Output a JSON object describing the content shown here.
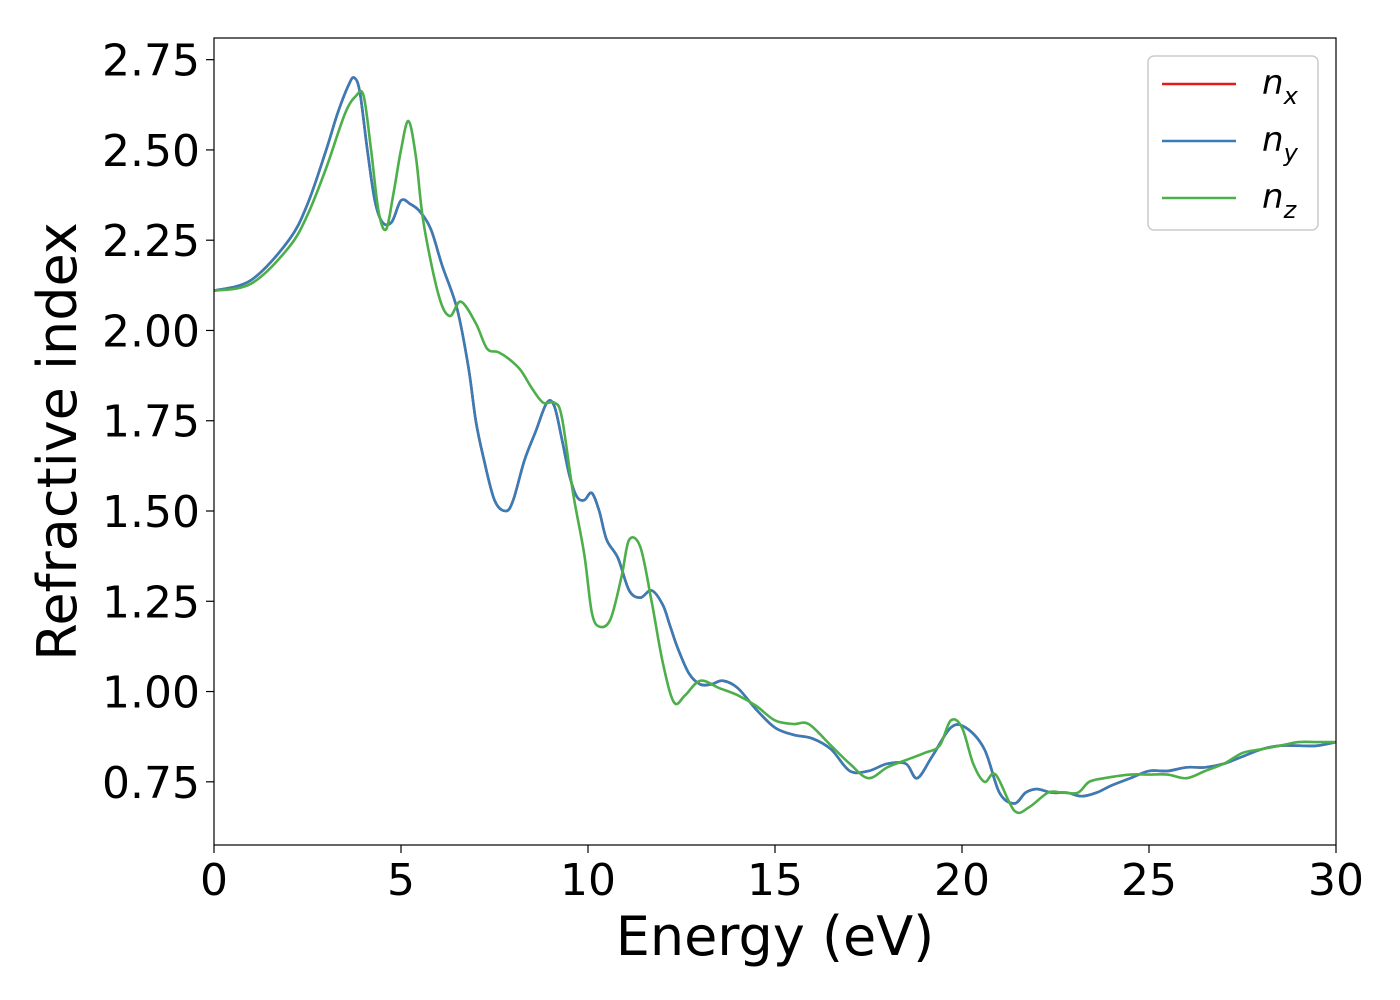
{
  "chart_data": {
    "type": "line",
    "title": "",
    "xlabel": "Energy (eV)",
    "ylabel": "Refractive index",
    "xlim": [
      0,
      30
    ],
    "ylim": [
      0.575,
      2.81
    ],
    "xticks": [
      0,
      5,
      10,
      15,
      20,
      25,
      30
    ],
    "xtick_labels": [
      "0",
      "5",
      "10",
      "15",
      "20",
      "25",
      "30"
    ],
    "yticks": [
      0.75,
      1.0,
      1.25,
      1.5,
      1.75,
      2.0,
      2.25,
      2.5,
      2.75
    ],
    "ytick_labels": [
      "0.75",
      "1.00",
      "1.25",
      "1.50",
      "1.75",
      "2.00",
      "2.25",
      "2.50",
      "2.75"
    ],
    "grid": false,
    "legend_position": "top-right",
    "series": [
      {
        "name": "n_x",
        "legend_base": "n",
        "legend_sub": "x",
        "color": "#e41a1c",
        "x": [
          0,
          1,
          2,
          2.5,
          3,
          3.3,
          3.6,
          3.75,
          3.9,
          4.1,
          4.3,
          4.5,
          4.75,
          5.0,
          5.25,
          5.5,
          5.8,
          6.1,
          6.5,
          6.8,
          7.0,
          7.2,
          7.5,
          7.8,
          8.0,
          8.3,
          8.6,
          8.9,
          9.1,
          9.3,
          9.5,
          9.7,
          9.9,
          10.1,
          10.3,
          10.5,
          10.8,
          11.1,
          11.4,
          11.7,
          12.0,
          12.2,
          12.4,
          12.7,
          13.0,
          13.3,
          13.6,
          14.0,
          14.5,
          15.0,
          15.5,
          16.0,
          16.5,
          17.0,
          17.5,
          18.0,
          18.5,
          18.8,
          19.2,
          19.7,
          20.1,
          20.6,
          21.0,
          21.4,
          21.7,
          22.0,
          22.4,
          22.8,
          23.2,
          23.6,
          24.0,
          24.5,
          25.0,
          25.5,
          26.0,
          26.5,
          27.0,
          27.5,
          28.0,
          28.5,
          29.0,
          29.5,
          30.0
        ],
        "y": [
          2.11,
          2.14,
          2.25,
          2.35,
          2.5,
          2.6,
          2.68,
          2.7,
          2.66,
          2.5,
          2.36,
          2.3,
          2.3,
          2.36,
          2.35,
          2.33,
          2.28,
          2.18,
          2.06,
          1.9,
          1.75,
          1.65,
          1.53,
          1.5,
          1.53,
          1.64,
          1.72,
          1.8,
          1.79,
          1.7,
          1.6,
          1.54,
          1.53,
          1.55,
          1.5,
          1.42,
          1.37,
          1.28,
          1.26,
          1.28,
          1.24,
          1.18,
          1.12,
          1.05,
          1.02,
          1.02,
          1.03,
          1.01,
          0.95,
          0.9,
          0.88,
          0.87,
          0.84,
          0.78,
          0.78,
          0.8,
          0.8,
          0.76,
          0.82,
          0.9,
          0.9,
          0.84,
          0.72,
          0.69,
          0.72,
          0.73,
          0.72,
          0.72,
          0.71,
          0.72,
          0.74,
          0.76,
          0.78,
          0.78,
          0.79,
          0.79,
          0.8,
          0.82,
          0.84,
          0.85,
          0.85,
          0.85,
          0.86
        ]
      },
      {
        "name": "n_y",
        "legend_base": "n",
        "legend_sub": "y",
        "color": "#377eb8",
        "x": [
          0,
          1,
          2,
          2.5,
          3,
          3.3,
          3.6,
          3.75,
          3.9,
          4.1,
          4.3,
          4.5,
          4.75,
          5.0,
          5.25,
          5.5,
          5.8,
          6.1,
          6.5,
          6.8,
          7.0,
          7.2,
          7.5,
          7.8,
          8.0,
          8.3,
          8.6,
          8.9,
          9.1,
          9.3,
          9.5,
          9.7,
          9.9,
          10.1,
          10.3,
          10.5,
          10.8,
          11.1,
          11.4,
          11.7,
          12.0,
          12.2,
          12.4,
          12.7,
          13.0,
          13.3,
          13.6,
          14.0,
          14.5,
          15.0,
          15.5,
          16.0,
          16.5,
          17.0,
          17.5,
          18.0,
          18.5,
          18.8,
          19.2,
          19.7,
          20.1,
          20.6,
          21.0,
          21.4,
          21.7,
          22.0,
          22.4,
          22.8,
          23.2,
          23.6,
          24.0,
          24.5,
          25.0,
          25.5,
          26.0,
          26.5,
          27.0,
          27.5,
          28.0,
          28.5,
          29.0,
          29.5,
          30.0
        ],
        "y": [
          2.11,
          2.14,
          2.25,
          2.35,
          2.5,
          2.6,
          2.68,
          2.7,
          2.66,
          2.5,
          2.36,
          2.3,
          2.3,
          2.36,
          2.35,
          2.33,
          2.28,
          2.18,
          2.06,
          1.9,
          1.75,
          1.65,
          1.53,
          1.5,
          1.53,
          1.64,
          1.72,
          1.8,
          1.79,
          1.7,
          1.6,
          1.54,
          1.53,
          1.55,
          1.5,
          1.42,
          1.37,
          1.28,
          1.26,
          1.28,
          1.24,
          1.18,
          1.12,
          1.05,
          1.02,
          1.02,
          1.03,
          1.01,
          0.95,
          0.9,
          0.88,
          0.87,
          0.84,
          0.78,
          0.78,
          0.8,
          0.8,
          0.76,
          0.82,
          0.9,
          0.9,
          0.84,
          0.72,
          0.69,
          0.72,
          0.73,
          0.72,
          0.72,
          0.71,
          0.72,
          0.74,
          0.76,
          0.78,
          0.78,
          0.79,
          0.79,
          0.8,
          0.82,
          0.84,
          0.85,
          0.85,
          0.85,
          0.86
        ]
      },
      {
        "name": "n_z",
        "legend_base": "n",
        "legend_sub": "z",
        "color": "#4daf4a",
        "x": [
          0,
          1,
          2,
          2.5,
          3,
          3.5,
          3.8,
          4.0,
          4.2,
          4.4,
          4.6,
          4.8,
          5.0,
          5.2,
          5.4,
          5.6,
          6.0,
          6.3,
          6.6,
          7.0,
          7.3,
          7.6,
          7.9,
          8.2,
          8.5,
          8.8,
          9.1,
          9.3,
          9.6,
          9.9,
          10.1,
          10.3,
          10.6,
          10.9,
          11.1,
          11.4,
          11.7,
          12.0,
          12.3,
          12.6,
          13.0,
          13.5,
          14.0,
          14.5,
          15.0,
          15.5,
          15.9,
          16.5,
          17.0,
          17.5,
          18.0,
          18.5,
          19.0,
          19.4,
          19.7,
          20.0,
          20.3,
          20.6,
          20.9,
          21.4,
          21.8,
          22.3,
          22.7,
          23.1,
          23.4,
          23.8,
          24.5,
          25.0,
          25.5,
          26.0,
          26.5,
          27.0,
          27.5,
          28.0,
          28.5,
          29.0,
          29.5,
          30.0
        ],
        "y": [
          2.11,
          2.13,
          2.23,
          2.32,
          2.45,
          2.6,
          2.65,
          2.65,
          2.5,
          2.33,
          2.28,
          2.38,
          2.5,
          2.58,
          2.48,
          2.3,
          2.1,
          2.04,
          2.08,
          2.02,
          1.95,
          1.94,
          1.92,
          1.89,
          1.84,
          1.8,
          1.8,
          1.76,
          1.55,
          1.38,
          1.22,
          1.18,
          1.2,
          1.32,
          1.42,
          1.4,
          1.25,
          1.08,
          0.97,
          0.99,
          1.03,
          1.01,
          0.99,
          0.96,
          0.92,
          0.91,
          0.91,
          0.85,
          0.8,
          0.76,
          0.79,
          0.81,
          0.83,
          0.85,
          0.92,
          0.9,
          0.8,
          0.75,
          0.77,
          0.67,
          0.68,
          0.72,
          0.72,
          0.72,
          0.75,
          0.76,
          0.77,
          0.77,
          0.77,
          0.76,
          0.78,
          0.8,
          0.83,
          0.84,
          0.85,
          0.86,
          0.86,
          0.86
        ]
      }
    ]
  }
}
